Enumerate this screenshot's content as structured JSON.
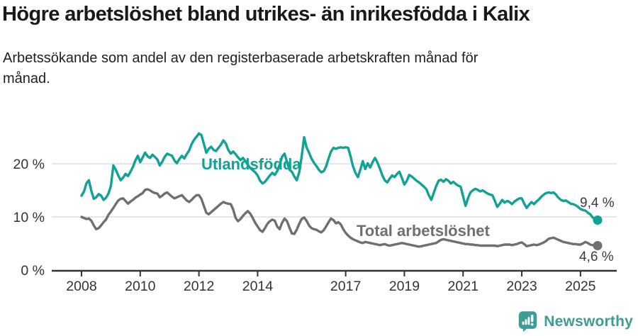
{
  "header": {
    "title": "Högre arbetslöshet bland utrikes- än inrikesfödda i Kalix",
    "subtitle": "Arbetssökande som andel av den registerbaserade arbetskraften månad för månad."
  },
  "chart_data": {
    "type": "line",
    "title": "Högre arbetslöshet bland utrikes- än inrikesfödda i Kalix",
    "subtitle": "Arbetssökande som andel av den registerbaserade arbetskraften månad för månad.",
    "x_unit": "month",
    "x_range": [
      "2008-01",
      "2025-08"
    ],
    "x_tick_labels": [
      "2008",
      "2010",
      "2012",
      "2014",
      "2017",
      "2019",
      "2021",
      "2023",
      "2025"
    ],
    "y_ticks": [
      0,
      10,
      20
    ],
    "y_tick_labels": [
      "0 %",
      "10 %",
      "20 %"
    ],
    "ylim": [
      0,
      27
    ],
    "grid": "horizontal-gridlines-at-10-and-20",
    "legend_position": "labels-on-lines",
    "axis_color": "#333333",
    "gridline_color": "#d8d8d8",
    "series": [
      {
        "name": "Utlandsfödda",
        "color": "#10A295",
        "end_label": "9,4 %",
        "end_value": 9.4,
        "values": [
          14.0,
          14.8,
          16.3,
          16.9,
          14.9,
          13.4,
          13.7,
          14.3,
          14.0,
          13.2,
          13.6,
          14.4,
          15.8,
          19.7,
          18.9,
          17.8,
          16.9,
          17.4,
          18.1,
          17.7,
          18.5,
          19.4,
          20.6,
          21.5,
          20.3,
          21.2,
          22.1,
          21.4,
          21.1,
          21.7,
          21.3,
          20.8,
          19.7,
          20.4,
          21.3,
          21.9,
          21.7,
          21.5,
          20.6,
          20.1,
          20.9,
          21.5,
          21.0,
          21.8,
          22.5,
          23.7,
          24.5,
          25.1,
          25.7,
          25.4,
          23.8,
          22.1,
          22.8,
          23.2,
          22.6,
          22.4,
          23.0,
          23.6,
          24.4,
          23.8,
          22.6,
          21.9,
          22.3,
          21.8,
          21.2,
          20.7,
          21.1,
          20.5,
          19.8,
          19.2,
          18.8,
          18.4,
          17.8,
          16.8,
          16.3,
          16.6,
          17.2,
          17.8,
          18.3,
          17.9,
          18.6,
          19.8,
          21.3,
          21.9,
          20.4,
          18.9,
          18.5,
          17.6,
          16.9,
          18.4,
          21.3,
          25.0,
          23.1,
          22.1,
          21.0,
          20.2,
          19.6,
          18.9,
          18.4,
          18.6,
          19.5,
          21.0,
          22.3,
          23.0,
          22.8,
          23.0,
          23.1,
          23.0,
          23.1,
          23.0,
          21.4,
          19.5,
          18.3,
          17.5,
          18.9,
          20.5,
          19.0,
          20.1,
          19.3,
          20.3,
          21.1,
          20.2,
          19.1,
          17.8,
          16.9,
          16.5,
          17.2,
          17.8,
          17.5,
          18.1,
          18.5,
          17.3,
          16.1,
          16.8,
          17.9,
          17.6,
          17.2,
          16.8,
          16.5,
          16.1,
          15.7,
          15.2,
          14.1,
          13.2,
          14.5,
          15.8,
          16.8,
          17.0,
          16.6,
          17.1,
          16.8,
          16.3,
          16.6,
          16.2,
          15.9,
          15.7,
          13.9,
          12.1,
          13.5,
          14.6,
          15.0,
          15.3,
          15.1,
          14.8,
          15.0,
          14.7,
          14.4,
          14.2,
          14.1,
          13.0,
          11.9,
          12.5,
          13.2,
          12.7,
          13.0,
          12.8,
          12.4,
          12.9,
          13.2,
          13.5,
          13.5,
          12.5,
          11.7,
          12.3,
          12.8,
          12.4,
          12.9,
          13.3,
          13.8,
          14.2,
          14.5,
          14.6,
          14.5,
          14.6,
          14.2,
          13.6,
          13.2,
          13.0,
          13.1,
          12.8,
          12.5,
          12.4,
          12.2,
          11.9,
          11.5,
          11.3,
          11.2,
          10.8,
          10.5,
          9.9,
          9.6,
          9.4
        ]
      },
      {
        "name": "Total arbetslöshet",
        "color": "#6F6F6F",
        "end_label": "4,6 %",
        "end_value": 4.6,
        "values": [
          10.0,
          9.8,
          9.6,
          9.7,
          9.3,
          8.4,
          7.7,
          7.9,
          8.4,
          9.0,
          9.5,
          10.4,
          11.0,
          11.7,
          12.4,
          13.1,
          13.4,
          13.5,
          13.0,
          12.5,
          12.9,
          13.2,
          13.6,
          13.9,
          14.2,
          14.5,
          15.1,
          15.2,
          15.0,
          14.7,
          14.5,
          14.4,
          13.7,
          14.0,
          14.4,
          14.6,
          14.2,
          13.8,
          13.5,
          13.7,
          13.9,
          14.1,
          13.6,
          13.1,
          12.8,
          13.2,
          13.7,
          14.1,
          14.1,
          13.4,
          12.1,
          10.8,
          10.5,
          10.9,
          11.3,
          11.7,
          12.1,
          12.5,
          12.8,
          12.6,
          12.5,
          12.4,
          11.4,
          9.8,
          9.2,
          9.6,
          10.2,
          10.7,
          11.1,
          10.6,
          9.8,
          8.9,
          8.2,
          7.5,
          7.2,
          7.9,
          8.7,
          9.2,
          9.5,
          9.3,
          8.2,
          7.7,
          8.9,
          9.7,
          9.2,
          8.0,
          6.9,
          6.8,
          7.6,
          8.7,
          9.6,
          9.9,
          9.3,
          8.4,
          7.9,
          7.7,
          7.6,
          7.3,
          7.1,
          7.5,
          8.2,
          9.0,
          9.7,
          9.4,
          8.8,
          9.0,
          8.6,
          7.7,
          7.0,
          6.5,
          6.1,
          5.8,
          5.6,
          5.4,
          5.2,
          5.1,
          5.3,
          5.2,
          5.1,
          5.0,
          4.9,
          4.8,
          4.7,
          4.8,
          4.9,
          4.7,
          4.6,
          4.7,
          4.8,
          4.9,
          5.0,
          5.1,
          5.0,
          4.9,
          4.8,
          4.7,
          4.6,
          4.5,
          4.4,
          4.5,
          4.6,
          4.7,
          4.8,
          4.9,
          5.0,
          5.1,
          5.4,
          5.7,
          5.8,
          5.7,
          5.6,
          5.5,
          5.4,
          5.3,
          5.2,
          5.1,
          5.0,
          4.9,
          4.9,
          4.8,
          4.8,
          4.7,
          4.7,
          4.6,
          4.6,
          4.6,
          4.6,
          4.6,
          4.6,
          4.6,
          4.5,
          4.6,
          4.7,
          4.8,
          4.8,
          4.8,
          4.7,
          4.8,
          4.9,
          5.1,
          5.2,
          4.9,
          4.5,
          4.6,
          4.7,
          4.8,
          4.7,
          4.8,
          5.0,
          5.2,
          5.5,
          5.9,
          6.0,
          6.1,
          5.9,
          5.7,
          5.5,
          5.3,
          5.2,
          5.1,
          5.0,
          4.9,
          4.9,
          4.8,
          4.8,
          5.0,
          5.3,
          5.1,
          4.8,
          4.7,
          4.6,
          4.6
        ]
      }
    ]
  },
  "footer": {
    "brand": "Newsworthy",
    "brand_color": "#3E9C95",
    "logo_icon": "bar-chart-speech-bubble-icon"
  }
}
